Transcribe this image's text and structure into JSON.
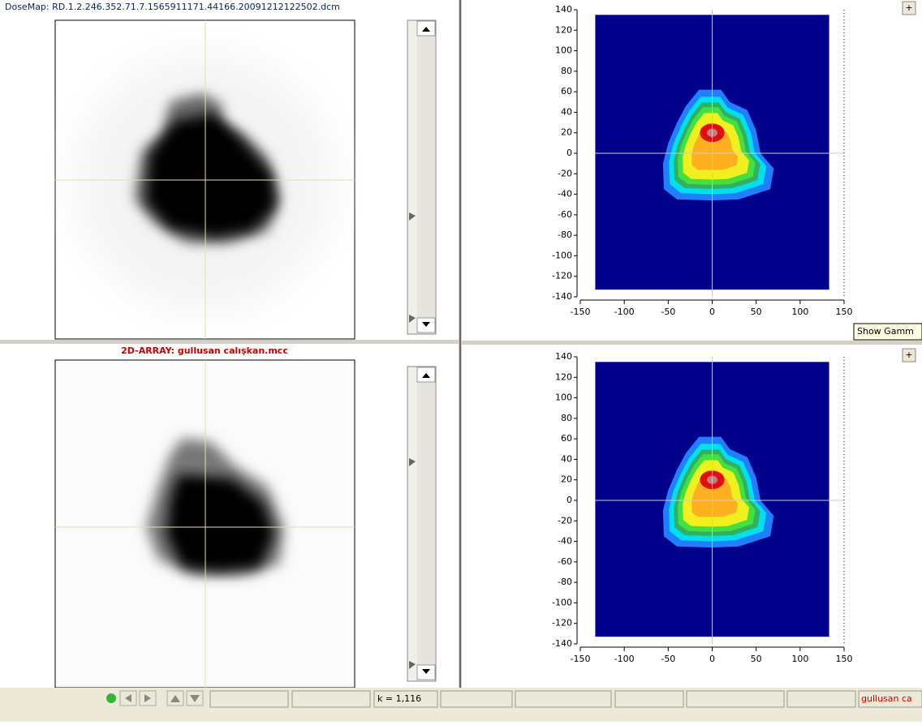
{
  "top_left": {
    "title": "DoseMap: RD.1.2.246.352.71.7.1565911171.44166.20091212122502.dcm"
  },
  "bottom_left": {
    "title": "2D-ARRAY: gullusan calışkan.mcc"
  },
  "plots": [
    {
      "type": "heatmap",
      "xlim": [
        -150,
        150
      ],
      "ylim": [
        -140,
        140
      ],
      "xticks": [
        -150,
        -100,
        -50,
        0,
        50,
        100,
        150
      ],
      "yticks": [
        140,
        120,
        100,
        80,
        60,
        40,
        20,
        0,
        -20,
        -40,
        -60,
        -80,
        -100,
        -120,
        -140
      ],
      "button": "+"
    },
    {
      "type": "heatmap",
      "xlim": [
        -150,
        150
      ],
      "ylim": [
        -140,
        140
      ],
      "xticks": [
        -150,
        -100,
        -50,
        0,
        50,
        100,
        150
      ],
      "yticks": [
        140,
        120,
        100,
        80,
        60,
        40,
        20,
        0,
        -20,
        -40,
        -60,
        -80,
        -100,
        -120,
        -140
      ],
      "button": "+"
    }
  ],
  "tooltip": "Show Gamm",
  "status_bar": {
    "k_field": "k = 1,116",
    "file_field": "gullusan ca"
  }
}
